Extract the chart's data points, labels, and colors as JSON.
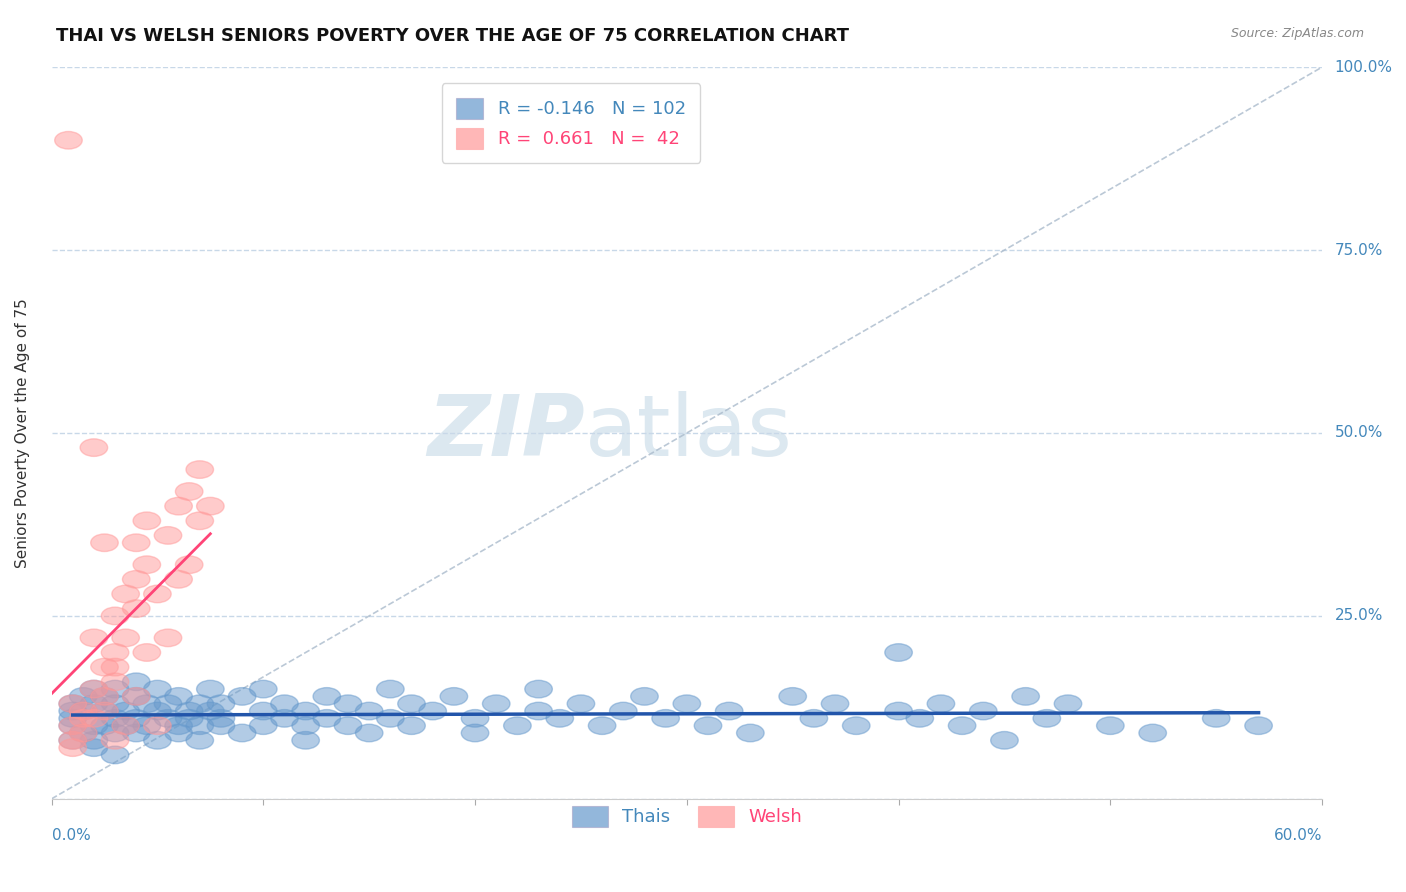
{
  "title": "THAI VS WELSH SENIORS POVERTY OVER THE AGE OF 75 CORRELATION CHART",
  "source": "Source: ZipAtlas.com",
  "ylabel": "Seniors Poverty Over the Age of 75",
  "xlim": [
    0.0,
    0.6
  ],
  "ylim": [
    0.0,
    1.0
  ],
  "yticks": [
    0.0,
    0.25,
    0.5,
    0.75,
    1.0
  ],
  "yticklabels": [
    "",
    "25.0%",
    "50.0%",
    "75.0%",
    "100.0%"
  ],
  "grid_color": "#c8d8e8",
  "background_color": "#ffffff",
  "watermark_zip": "ZIP",
  "watermark_atlas": "atlas",
  "watermark_color": "#dce8f0",
  "title_fontsize": 13,
  "axis_label_color": "#4488bb",
  "legend_R_thai": "-0.146",
  "legend_N_thai": "102",
  "legend_R_welsh": "0.661",
  "legend_N_welsh": "42",
  "thai_color": "#6699cc",
  "welsh_color": "#ff9999",
  "thai_line_color": "#2255aa",
  "welsh_line_color": "#ff4477",
  "ref_line_color": "#aabbcc",
  "thai_scatter": [
    [
      0.01,
      0.12
    ],
    [
      0.01,
      0.1
    ],
    [
      0.01,
      0.13
    ],
    [
      0.01,
      0.08
    ],
    [
      0.01,
      0.11
    ],
    [
      0.015,
      0.14
    ],
    [
      0.015,
      0.09
    ],
    [
      0.015,
      0.12
    ],
    [
      0.02,
      0.1
    ],
    [
      0.02,
      0.15
    ],
    [
      0.02,
      0.08
    ],
    [
      0.02,
      0.13
    ],
    [
      0.025,
      0.12
    ],
    [
      0.025,
      0.1
    ],
    [
      0.025,
      0.14
    ],
    [
      0.03,
      0.11
    ],
    [
      0.03,
      0.09
    ],
    [
      0.03,
      0.15
    ],
    [
      0.03,
      0.13
    ],
    [
      0.035,
      0.1
    ],
    [
      0.035,
      0.12
    ],
    [
      0.04,
      0.11
    ],
    [
      0.04,
      0.09
    ],
    [
      0.04,
      0.14
    ],
    [
      0.04,
      0.16
    ],
    [
      0.045,
      0.13
    ],
    [
      0.045,
      0.1
    ],
    [
      0.05,
      0.12
    ],
    [
      0.05,
      0.08
    ],
    [
      0.05,
      0.15
    ],
    [
      0.055,
      0.11
    ],
    [
      0.055,
      0.13
    ],
    [
      0.06,
      0.1
    ],
    [
      0.06,
      0.14
    ],
    [
      0.06,
      0.09
    ],
    [
      0.065,
      0.12
    ],
    [
      0.065,
      0.11
    ],
    [
      0.07,
      0.13
    ],
    [
      0.07,
      0.1
    ],
    [
      0.07,
      0.08
    ],
    [
      0.075,
      0.15
    ],
    [
      0.075,
      0.12
    ],
    [
      0.08,
      0.1
    ],
    [
      0.08,
      0.13
    ],
    [
      0.08,
      0.11
    ],
    [
      0.09,
      0.14
    ],
    [
      0.09,
      0.09
    ],
    [
      0.1,
      0.12
    ],
    [
      0.1,
      0.1
    ],
    [
      0.1,
      0.15
    ],
    [
      0.11,
      0.11
    ],
    [
      0.11,
      0.13
    ],
    [
      0.12,
      0.1
    ],
    [
      0.12,
      0.12
    ],
    [
      0.12,
      0.08
    ],
    [
      0.13,
      0.14
    ],
    [
      0.13,
      0.11
    ],
    [
      0.14,
      0.13
    ],
    [
      0.14,
      0.1
    ],
    [
      0.15,
      0.12
    ],
    [
      0.15,
      0.09
    ],
    [
      0.16,
      0.15
    ],
    [
      0.16,
      0.11
    ],
    [
      0.17,
      0.13
    ],
    [
      0.17,
      0.1
    ],
    [
      0.18,
      0.12
    ],
    [
      0.19,
      0.14
    ],
    [
      0.2,
      0.11
    ],
    [
      0.2,
      0.09
    ],
    [
      0.21,
      0.13
    ],
    [
      0.22,
      0.1
    ],
    [
      0.23,
      0.12
    ],
    [
      0.23,
      0.15
    ],
    [
      0.24,
      0.11
    ],
    [
      0.25,
      0.13
    ],
    [
      0.26,
      0.1
    ],
    [
      0.27,
      0.12
    ],
    [
      0.28,
      0.14
    ],
    [
      0.29,
      0.11
    ],
    [
      0.3,
      0.13
    ],
    [
      0.31,
      0.1
    ],
    [
      0.32,
      0.12
    ],
    [
      0.33,
      0.09
    ],
    [
      0.35,
      0.14
    ],
    [
      0.36,
      0.11
    ],
    [
      0.37,
      0.13
    ],
    [
      0.38,
      0.1
    ],
    [
      0.4,
      0.12
    ],
    [
      0.4,
      0.2
    ],
    [
      0.41,
      0.11
    ],
    [
      0.42,
      0.13
    ],
    [
      0.43,
      0.1
    ],
    [
      0.44,
      0.12
    ],
    [
      0.45,
      0.08
    ],
    [
      0.46,
      0.14
    ],
    [
      0.47,
      0.11
    ],
    [
      0.48,
      0.13
    ],
    [
      0.5,
      0.1
    ],
    [
      0.52,
      0.09
    ],
    [
      0.55,
      0.11
    ],
    [
      0.57,
      0.1
    ],
    [
      0.02,
      0.07
    ],
    [
      0.03,
      0.06
    ]
  ],
  "welsh_scatter": [
    [
      0.01,
      0.1
    ],
    [
      0.01,
      0.13
    ],
    [
      0.01,
      0.08
    ],
    [
      0.015,
      0.12
    ],
    [
      0.015,
      0.09
    ],
    [
      0.02,
      0.15
    ],
    [
      0.02,
      0.11
    ],
    [
      0.02,
      0.22
    ],
    [
      0.025,
      0.14
    ],
    [
      0.025,
      0.18
    ],
    [
      0.03,
      0.2
    ],
    [
      0.03,
      0.25
    ],
    [
      0.03,
      0.16
    ],
    [
      0.035,
      0.28
    ],
    [
      0.035,
      0.22
    ],
    [
      0.04,
      0.3
    ],
    [
      0.04,
      0.35
    ],
    [
      0.04,
      0.26
    ],
    [
      0.045,
      0.32
    ],
    [
      0.045,
      0.38
    ],
    [
      0.05,
      0.1
    ],
    [
      0.055,
      0.36
    ],
    [
      0.06,
      0.4
    ],
    [
      0.065,
      0.42
    ],
    [
      0.07,
      0.45
    ],
    [
      0.008,
      0.9
    ],
    [
      0.02,
      0.48
    ],
    [
      0.025,
      0.35
    ],
    [
      0.03,
      0.18
    ],
    [
      0.01,
      0.07
    ],
    [
      0.015,
      0.11
    ],
    [
      0.025,
      0.12
    ],
    [
      0.03,
      0.08
    ],
    [
      0.035,
      0.1
    ],
    [
      0.04,
      0.14
    ],
    [
      0.045,
      0.2
    ],
    [
      0.05,
      0.28
    ],
    [
      0.055,
      0.22
    ],
    [
      0.06,
      0.3
    ],
    [
      0.065,
      0.32
    ],
    [
      0.07,
      0.38
    ],
    [
      0.075,
      0.4
    ]
  ]
}
